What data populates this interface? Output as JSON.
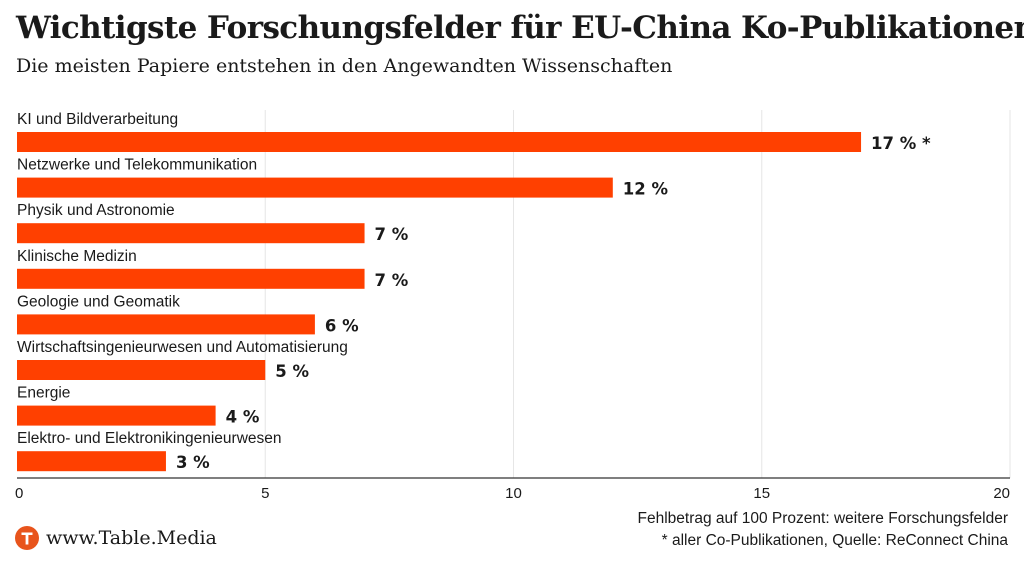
{
  "colors": {
    "bar": "#ff4000",
    "grid": "#e6e6e6",
    "axis": "#333333",
    "logo": "#e8541c"
  },
  "footer": {
    "logo_icon": "table-media-logo-icon",
    "site": "www.Table.Media",
    "note_line1": "Fehlbetrag auf 100 Prozent: weitere Forschungsfelder",
    "note_line2": "* aller Co-Publikationen, Quelle: ReConnect China"
  },
  "chart_data": {
    "type": "bar",
    "orientation": "horizontal",
    "title": "Wichtigste Forschungsfelder für EU-China Ko-Publikationen",
    "subtitle": "Die meisten Papiere entstehen in den Angewandten Wissenschaften",
    "categories": [
      "KI und Bildverarbeitung",
      "Netzwerke und Telekommunikation",
      "Physik und Astronomie",
      "Klinische Medizin",
      "Geologie und Geomatik",
      "Wirtschaftsingenieurwesen und Automatisierung",
      "Energie",
      "Elektro- und Elektronikingenieurwesen"
    ],
    "values": [
      17,
      12,
      7,
      7,
      6,
      5,
      4,
      3
    ],
    "value_labels": [
      "17 % *",
      "12 %",
      "7 %",
      "7 %",
      "6 %",
      "5 %",
      "4 %",
      "3 %"
    ],
    "xlabel": "",
    "ylabel": "",
    "xlim": [
      0,
      20
    ],
    "xticks": [
      0,
      5,
      10,
      15,
      20
    ],
    "xtick_labels": [
      "0",
      "5",
      "10",
      "15",
      "20"
    ],
    "grid": true,
    "legend": "none"
  }
}
